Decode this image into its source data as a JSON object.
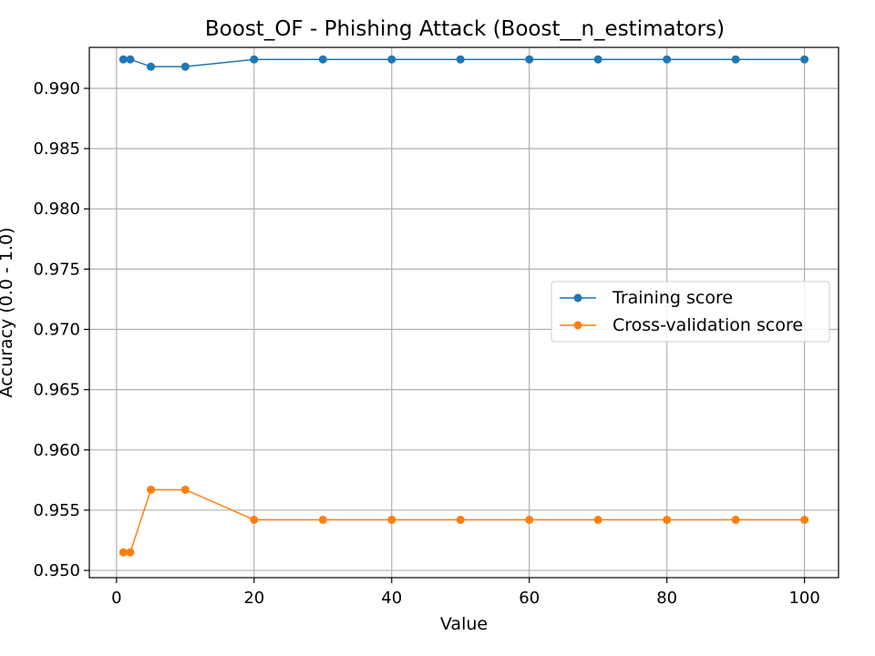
{
  "chart_data": {
    "type": "line",
    "title": "Boost_OF - Phishing Attack (Boost__n_estimators)",
    "xlabel": "Value",
    "ylabel": "Accuracy (0.0 - 1.0)",
    "xlim": [
      -3.95,
      104.95
    ],
    "ylim": [
      0.9494,
      0.9934
    ],
    "x_ticks": [
      0,
      20,
      40,
      60,
      80,
      100
    ],
    "y_ticks": [
      0.95,
      0.955,
      0.96,
      0.965,
      0.97,
      0.975,
      0.98,
      0.985,
      0.99
    ],
    "y_tick_labels": [
      "0.950",
      "0.955",
      "0.960",
      "0.965",
      "0.970",
      "0.975",
      "0.980",
      "0.985",
      "0.990"
    ],
    "x_tick_labels": [
      "0",
      "20",
      "40",
      "60",
      "80",
      "100"
    ],
    "grid": true,
    "legend_position": "center-right",
    "x": [
      1,
      2,
      5,
      10,
      20,
      30,
      40,
      50,
      60,
      70,
      80,
      90,
      100
    ],
    "series": [
      {
        "name": "Training score",
        "color": "#1f77b4",
        "values": [
          0.9924,
          0.9924,
          0.9918,
          0.9918,
          0.9924,
          0.9924,
          0.9924,
          0.9924,
          0.9924,
          0.9924,
          0.9924,
          0.9924,
          0.9924
        ]
      },
      {
        "name": "Cross-validation score",
        "color": "#ff7f0e",
        "values": [
          0.9515,
          0.9515,
          0.9567,
          0.9567,
          0.9542,
          0.9542,
          0.9542,
          0.9542,
          0.9542,
          0.9542,
          0.9542,
          0.9542,
          0.9542
        ]
      }
    ]
  }
}
